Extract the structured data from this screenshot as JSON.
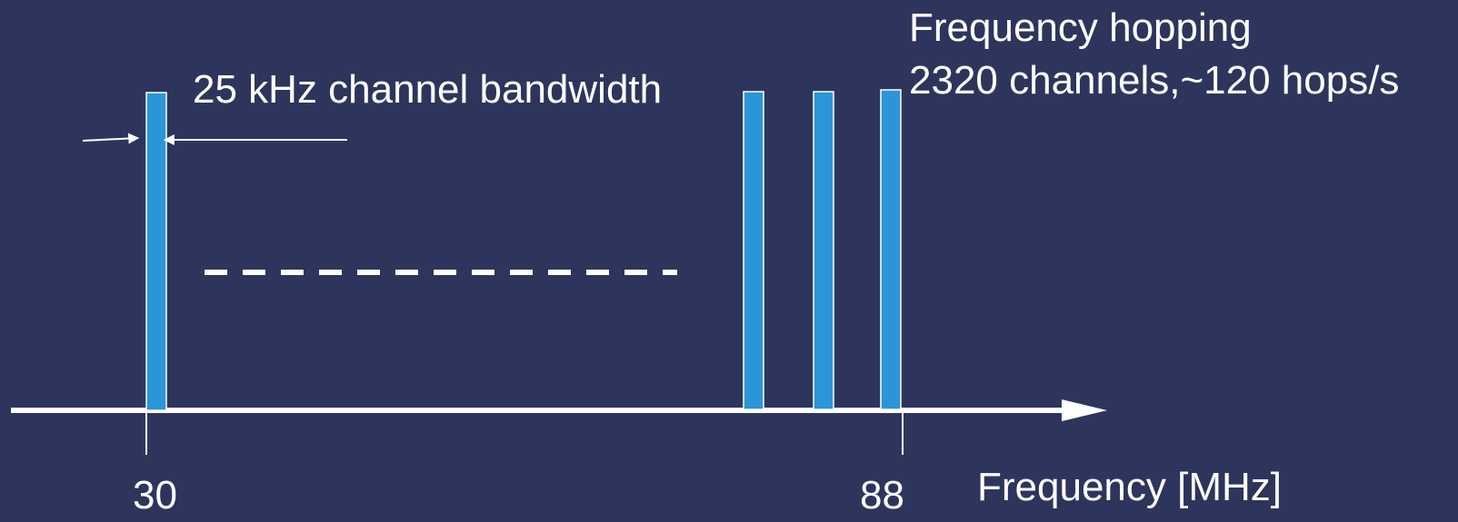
{
  "annotation": {
    "bandwidth": "25 kHz channel bandwidth",
    "hopping_title": "Frequency hopping",
    "hopping_detail": "2320 channels,~120 hops/s"
  },
  "axis": {
    "label": "Frequency [MHz]",
    "tick_start": "30",
    "tick_end": "88"
  },
  "colors": {
    "background": "#2e355c",
    "channel_bar": "#2a96d8",
    "line": "#ffffff"
  }
}
